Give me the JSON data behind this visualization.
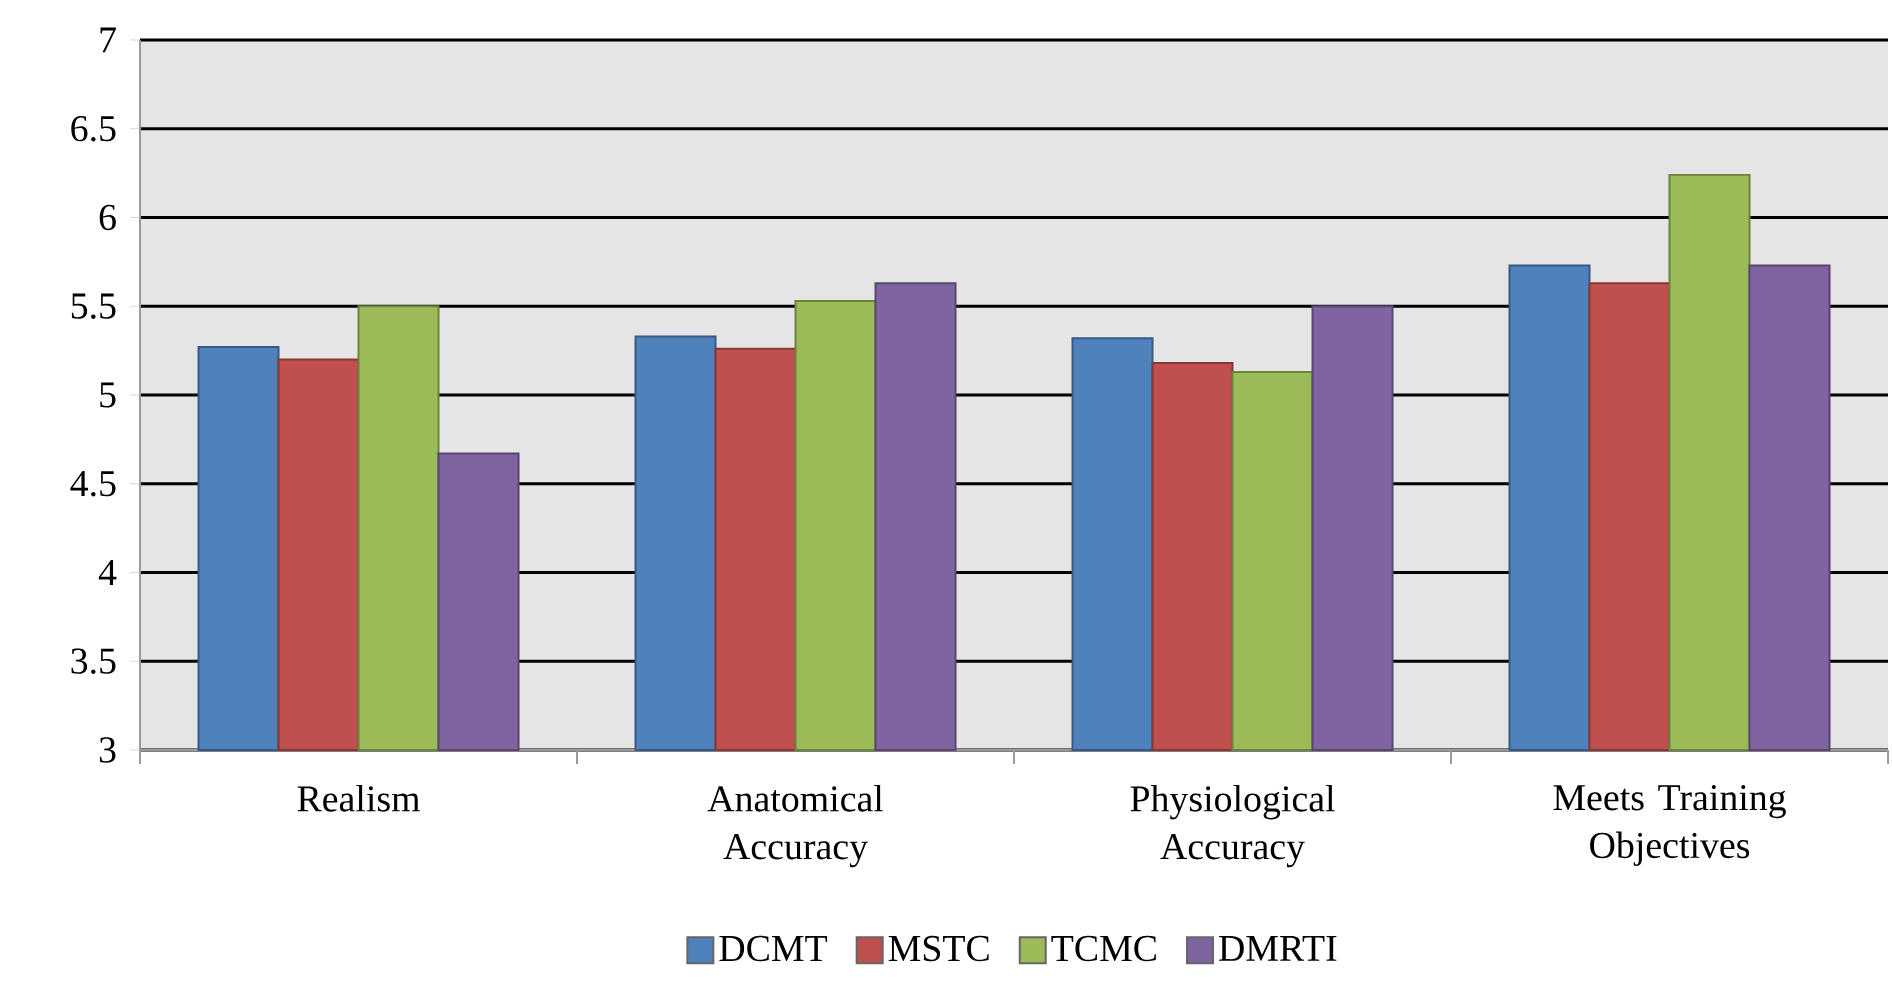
{
  "chart_data": {
    "type": "bar",
    "categories": [
      "Realism",
      "Anatomical Accuracy",
      "Physiological Accuracy",
      "Meets Training Objectives"
    ],
    "series": [
      {
        "name": "DCMT",
        "color": "#4f81bd",
        "values": [
          5.27,
          5.33,
          5.32,
          5.73
        ]
      },
      {
        "name": "MSTC",
        "color": "#c0504d",
        "values": [
          5.2,
          5.26,
          5.18,
          5.63
        ]
      },
      {
        "name": "TCMC",
        "color": "#9bbb59",
        "values": [
          5.5,
          5.53,
          5.13,
          6.24
        ]
      },
      {
        "name": "DMRTI",
        "color": "#8064a2",
        "values": [
          4.67,
          5.63,
          5.5,
          5.73
        ]
      }
    ],
    "ylim": [
      3,
      7
    ],
    "yticks": [
      3,
      3.5,
      4,
      4.5,
      5,
      5.5,
      6,
      6.5,
      7
    ],
    "grid": "y",
    "legend": "bottom"
  }
}
